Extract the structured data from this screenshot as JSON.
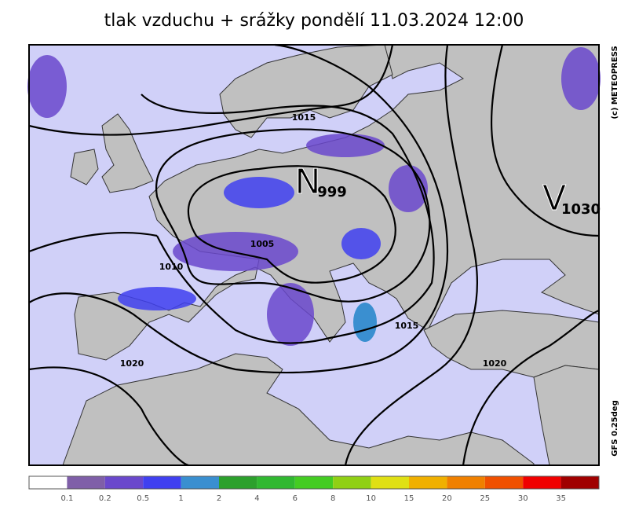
{
  "map": {
    "title": "tlak vzduchu + srážky pondělí 11.03.2024 12:00",
    "isobar_labels": [
      "1015",
      "1005",
      "1010",
      "1020",
      "1015",
      "1020"
    ],
    "centers": [
      {
        "letter": "N",
        "value": "999"
      },
      {
        "letter": "V",
        "value": "1030"
      }
    ],
    "credits": [
      "(c) METEOPRESS",
      "GFS 0.25deg"
    ],
    "legend": {
      "colors": [
        "#ffffff",
        "#7f5fa8",
        "#6a48cc",
        "#4040f0",
        "#3a8fd0",
        "#2ca02c",
        "#30b830",
        "#44cc22",
        "#90d014",
        "#e0e014",
        "#f0b000",
        "#f08000",
        "#f05000",
        "#f00000",
        "#a00000"
      ],
      "labels": [
        "0.1",
        "0.2",
        "0.5",
        "1",
        "2",
        "4",
        "6",
        "8",
        "10",
        "15",
        "20",
        "25",
        "30",
        "35"
      ]
    }
  }
}
